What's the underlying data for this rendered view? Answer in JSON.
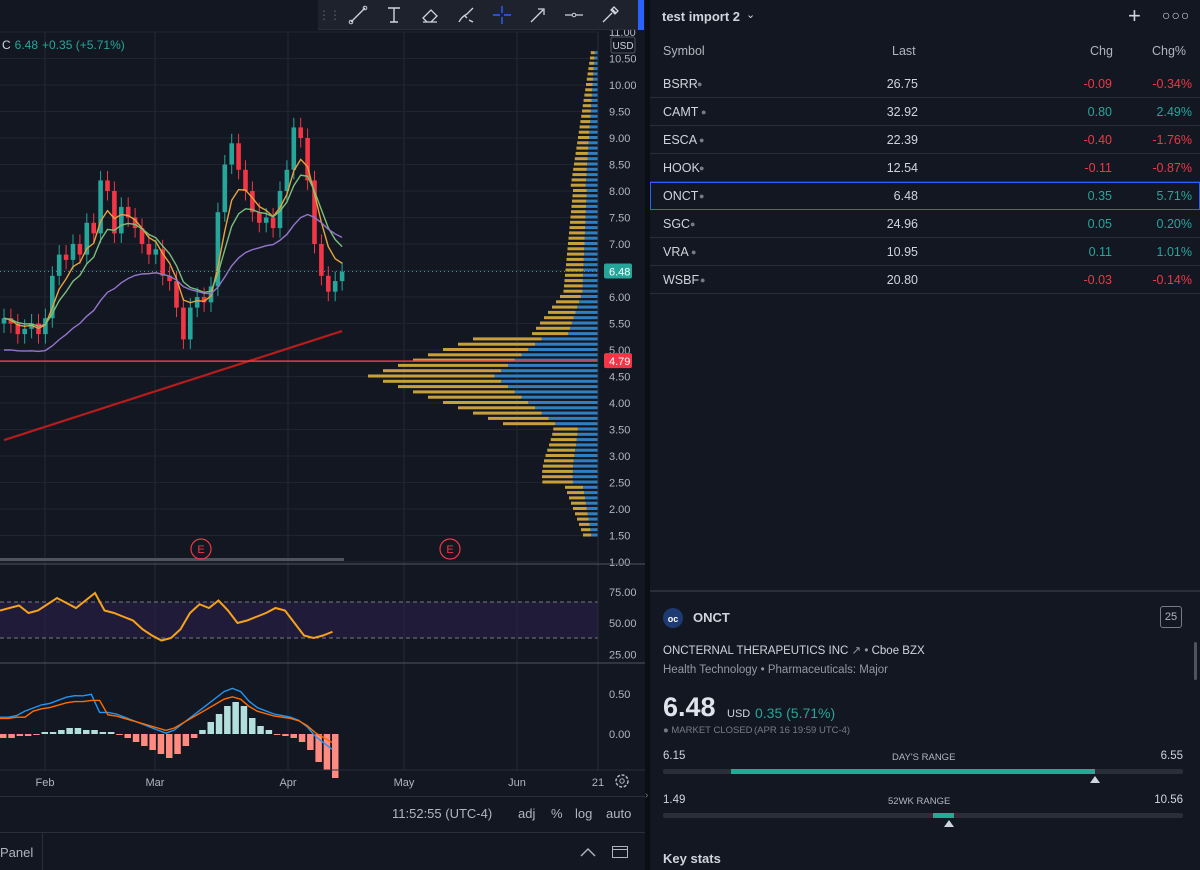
{
  "legend": {
    "label": "C",
    "value": "6.48",
    "change": "+0.35 (+5.71%)"
  },
  "price_axis": {
    "currency": "USD",
    "ticks": [
      "11.00",
      "10.50",
      "10.00",
      "9.50",
      "9.00",
      "8.50",
      "8.00",
      "7.50",
      "7.00",
      "6.50",
      "6.00",
      "5.50",
      "5.00",
      "4.50",
      "4.00",
      "3.50",
      "3.00",
      "2.50",
      "2.00",
      "1.50",
      "1.00"
    ],
    "current_label": "6.48",
    "line_label": "4.79"
  },
  "rsi_axis": {
    "ticks": [
      "75.00",
      "50.00",
      "25.00"
    ]
  },
  "macd_axis": {
    "ticks": [
      "0.50",
      "0.00"
    ]
  },
  "time_axis": {
    "labels": [
      "Feb",
      "Mar",
      "Apr",
      "May",
      "Jun",
      "21"
    ]
  },
  "earnings_marker": "E",
  "bottom_bar": {
    "time": "11:52:55 (UTC-4)",
    "adj": "adj",
    "percent": "%",
    "log": "log",
    "auto": "auto"
  },
  "panel_bar": {
    "label": "Panel"
  },
  "watchlist": {
    "title": "test import 2",
    "columns": {
      "symbol": "Symbol",
      "last": "Last",
      "chg": "Chg",
      "chgp": "Chg%"
    },
    "rows": [
      {
        "symbol": "BSRR",
        "last": "26.75",
        "chg": "-0.09",
        "chgp": "-0.34%",
        "dir": "dn"
      },
      {
        "symbol": "CAMT",
        "last": "32.92",
        "chg": "0.80",
        "chgp": "2.49%",
        "dir": "up"
      },
      {
        "symbol": "ESCA",
        "last": "22.39",
        "chg": "-0.40",
        "chgp": "-1.76%",
        "dir": "dn"
      },
      {
        "symbol": "HOOK",
        "last": "12.54",
        "chg": "-0.11",
        "chgp": "-0.87%",
        "dir": "dn"
      },
      {
        "symbol": "ONCT",
        "last": "6.48",
        "chg": "0.35",
        "chgp": "5.71%",
        "dir": "up"
      },
      {
        "symbol": "SGC",
        "last": "24.96",
        "chg": "0.05",
        "chgp": "0.20%",
        "dir": "up"
      },
      {
        "symbol": "VRA",
        "last": "10.95",
        "chg": "0.11",
        "chgp": "1.01%",
        "dir": "up"
      },
      {
        "symbol": "WSBF",
        "last": "20.80",
        "chg": "-0.03",
        "chgp": "-0.14%",
        "dir": "dn"
      }
    ]
  },
  "details": {
    "symbol": "ONCT",
    "badge": "25",
    "company": "ONCTERNAL THERAPEUTICS INC",
    "exchange": "Cboe BZX",
    "sector": "Health Technology",
    "industry": "Pharmaceuticals: Major",
    "price": "6.48",
    "currency": "USD",
    "change": "0.35 (5.71%)",
    "status": "MARKET CLOSED",
    "status_time": "(APR 16 19:59 UTC-4)",
    "days_range": {
      "label": "DAY'S RANGE",
      "low": "6.15",
      "high": "6.55",
      "fill_start": 0.13,
      "fill_end": 0.83,
      "marker": 0.83
    },
    "wk52_range": {
      "label": "52WK RANGE",
      "low": "1.49",
      "high": "10.56",
      "fill_start": 0.52,
      "fill_end": 0.56,
      "marker": 0.55
    },
    "key_stats": "Key stats"
  },
  "colors": {
    "up": "#26a69a",
    "down": "#f23645",
    "accent": "#2962ff",
    "volume_profile_blue": "#2f7fc1",
    "volume_profile_gold": "#c8a03a"
  }
}
